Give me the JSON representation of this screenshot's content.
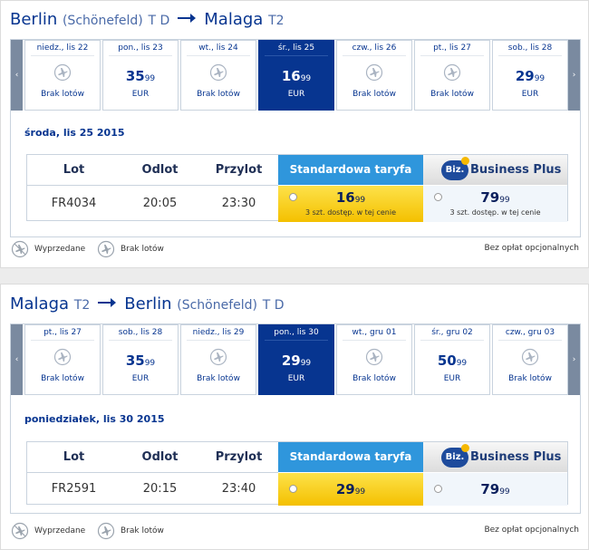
{
  "sections": [
    {
      "header": {
        "from": {
          "city": "Berlin",
          "airport": "(Schönefeld)",
          "terminal": "T D"
        },
        "to": {
          "city": "Malaga",
          "terminal": "T2"
        }
      },
      "days": [
        {
          "label": "niedz., lis 22",
          "status": "Brak lotów"
        },
        {
          "label": "pon., lis 23",
          "price": "35",
          "decimals": "99",
          "currency": "EUR"
        },
        {
          "label": "wt., lis 24",
          "status": "Brak lotów"
        },
        {
          "label": "śr., lis 25",
          "price": "16",
          "decimals": "99",
          "currency": "EUR",
          "selected": true
        },
        {
          "label": "czw., lis 26",
          "status": "Brak lotów"
        },
        {
          "label": "pt., lis 27",
          "status": "Brak lotów"
        },
        {
          "label": "sob., lis 28",
          "price": "29",
          "decimals": "99",
          "currency": "EUR"
        }
      ],
      "date": "środa, lis 25 2015",
      "table": {
        "headers": [
          "Lot",
          "Odlot",
          "Przylot"
        ],
        "standard_label": "Standardowa taryfa",
        "business_logo": "Biz.",
        "business_label": "Business Plus",
        "row": {
          "flight": "FR4034",
          "departure": "20:05",
          "arrival": "23:30",
          "standard": {
            "price": "16",
            "decimals": "99",
            "note": "3 szt. dostęp. w tej cenie"
          },
          "business": {
            "price": "79",
            "decimals": "99",
            "note": "3 szt. dostęp. w tej cenie"
          }
        }
      },
      "legend": {
        "sold_out": "Wyprzedane",
        "no_flights": "Brak lotów",
        "note": "Bez opłat opcjonalnych"
      }
    },
    {
      "header": {
        "from": {
          "city": "Malaga",
          "terminal": "T2"
        },
        "to": {
          "city": "Berlin",
          "airport": "(Schönefeld)",
          "terminal": "T D"
        }
      },
      "days": [
        {
          "label": "pt., lis 27",
          "status": "Brak lotów"
        },
        {
          "label": "sob., lis 28",
          "price": "35",
          "decimals": "99",
          "currency": "EUR"
        },
        {
          "label": "niedz., lis 29",
          "status": "Brak lotów"
        },
        {
          "label": "pon., lis 30",
          "price": "29",
          "decimals": "99",
          "currency": "EUR",
          "selected": true
        },
        {
          "label": "wt., gru 01",
          "status": "Brak lotów"
        },
        {
          "label": "śr., gru 02",
          "price": "50",
          "decimals": "99",
          "currency": "EUR"
        },
        {
          "label": "czw., gru 03",
          "status": "Brak lotów"
        }
      ],
      "date": "poniedziałek, lis 30 2015",
      "table": {
        "headers": [
          "Lot",
          "Odlot",
          "Przylot"
        ],
        "standard_label": "Standardowa taryfa",
        "business_logo": "Biz.",
        "business_label": "Business Plus",
        "row": {
          "flight": "FR2591",
          "departure": "20:15",
          "arrival": "23:40",
          "standard": {
            "price": "29",
            "decimals": "99"
          },
          "business": {
            "price": "79",
            "decimals": "99"
          }
        }
      },
      "legend": {
        "sold_out": "Wyprzedane",
        "no_flights": "Brak lotów",
        "note": "Bez opłat opcjonalnych"
      }
    }
  ]
}
